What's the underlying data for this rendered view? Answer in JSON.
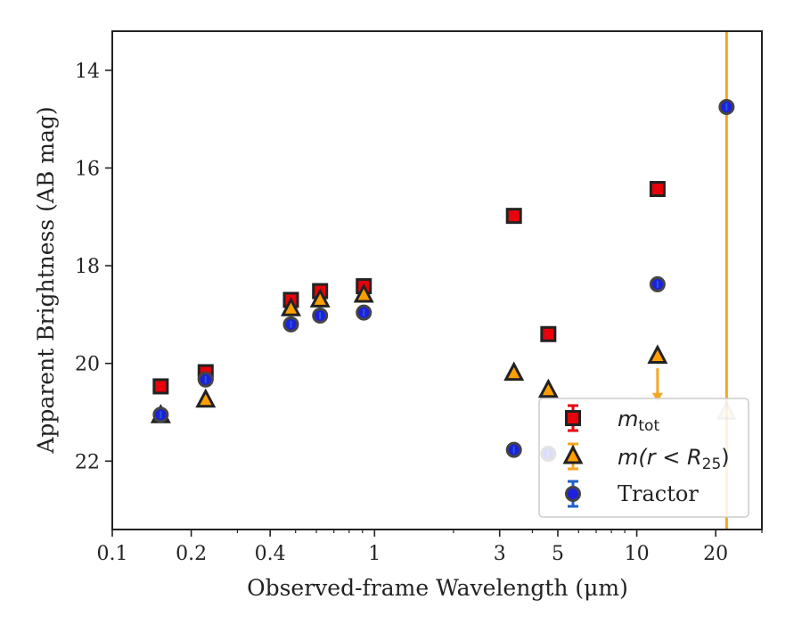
{
  "chart_data": {
    "type": "scatter",
    "title": "",
    "xlabel": "Observed-frame Wavelength (μm)",
    "ylabel": "Apparent Brightness (AB mag)",
    "xscale": "log",
    "xlim": [
      0.1,
      30
    ],
    "ylim": [
      23.4,
      13.2
    ],
    "y_inverted": true,
    "x_ticks": [
      0.1,
      0.2,
      0.4,
      1,
      3,
      5,
      10,
      20
    ],
    "x_tick_labels": [
      "0.1",
      "0.2",
      "0.4",
      "1",
      "3",
      "5",
      "10",
      "20"
    ],
    "y_ticks": [
      14,
      16,
      18,
      20,
      22
    ],
    "y_tick_labels": [
      "14",
      "16",
      "18",
      "20",
      "22"
    ],
    "grid": false,
    "legend_placement": "lower-right",
    "series": [
      {
        "name": "m_tot",
        "legend_label": "m",
        "legend_subscript": "tot",
        "marker": "square",
        "color": "#e8000b",
        "edge": "#222222",
        "error_color": "#e8000b",
        "points": [
          {
            "x": 0.153,
            "y": 20.47
          },
          {
            "x": 0.227,
            "y": 20.18
          },
          {
            "x": 0.48,
            "y": 18.7
          },
          {
            "x": 0.62,
            "y": 18.52
          },
          {
            "x": 0.91,
            "y": 18.42
          },
          {
            "x": 3.4,
            "y": 16.98
          },
          {
            "x": 4.6,
            "y": 19.4
          },
          {
            "x": 12.0,
            "y": 16.43
          }
        ]
      },
      {
        "name": "m(r<R25)",
        "legend_label": "m(r < R",
        "legend_subscript": "25",
        "legend_suffix": ")",
        "marker": "triangle",
        "color": "#ff9f00",
        "edge": "#222222",
        "error_color": "#f5a623",
        "points": [
          {
            "x": 0.153,
            "y": 21.07
          },
          {
            "x": 0.227,
            "y": 20.75
          },
          {
            "x": 0.48,
            "y": 18.88
          },
          {
            "x": 0.62,
            "y": 18.7
          },
          {
            "x": 0.91,
            "y": 18.6
          },
          {
            "x": 3.4,
            "y": 20.2
          },
          {
            "x": 4.6,
            "y": 20.55
          },
          {
            "x": 12.0,
            "y": 19.85
          },
          {
            "x": 22.0,
            "y": 21.0
          }
        ],
        "limit_arrow": {
          "x": 12.0,
          "from": 20.1,
          "to": 20.75
        },
        "vertical_error_line": {
          "x": 22.0,
          "from": 13.2,
          "to": 23.4
        }
      },
      {
        "name": "Tractor",
        "legend_label": "Tractor",
        "marker": "circle",
        "color": "#1f1fe0",
        "edge": "#222222",
        "error_color": "#1f5fd0",
        "points": [
          {
            "x": 0.153,
            "y": 21.05
          },
          {
            "x": 0.227,
            "y": 20.33
          },
          {
            "x": 0.48,
            "y": 19.2
          },
          {
            "x": 0.62,
            "y": 19.02
          },
          {
            "x": 0.91,
            "y": 18.96
          },
          {
            "x": 3.4,
            "y": 21.77
          },
          {
            "x": 4.6,
            "y": 21.85
          },
          {
            "x": 12.0,
            "y": 18.38
          },
          {
            "x": 22.0,
            "y": 14.75
          }
        ]
      }
    ]
  }
}
